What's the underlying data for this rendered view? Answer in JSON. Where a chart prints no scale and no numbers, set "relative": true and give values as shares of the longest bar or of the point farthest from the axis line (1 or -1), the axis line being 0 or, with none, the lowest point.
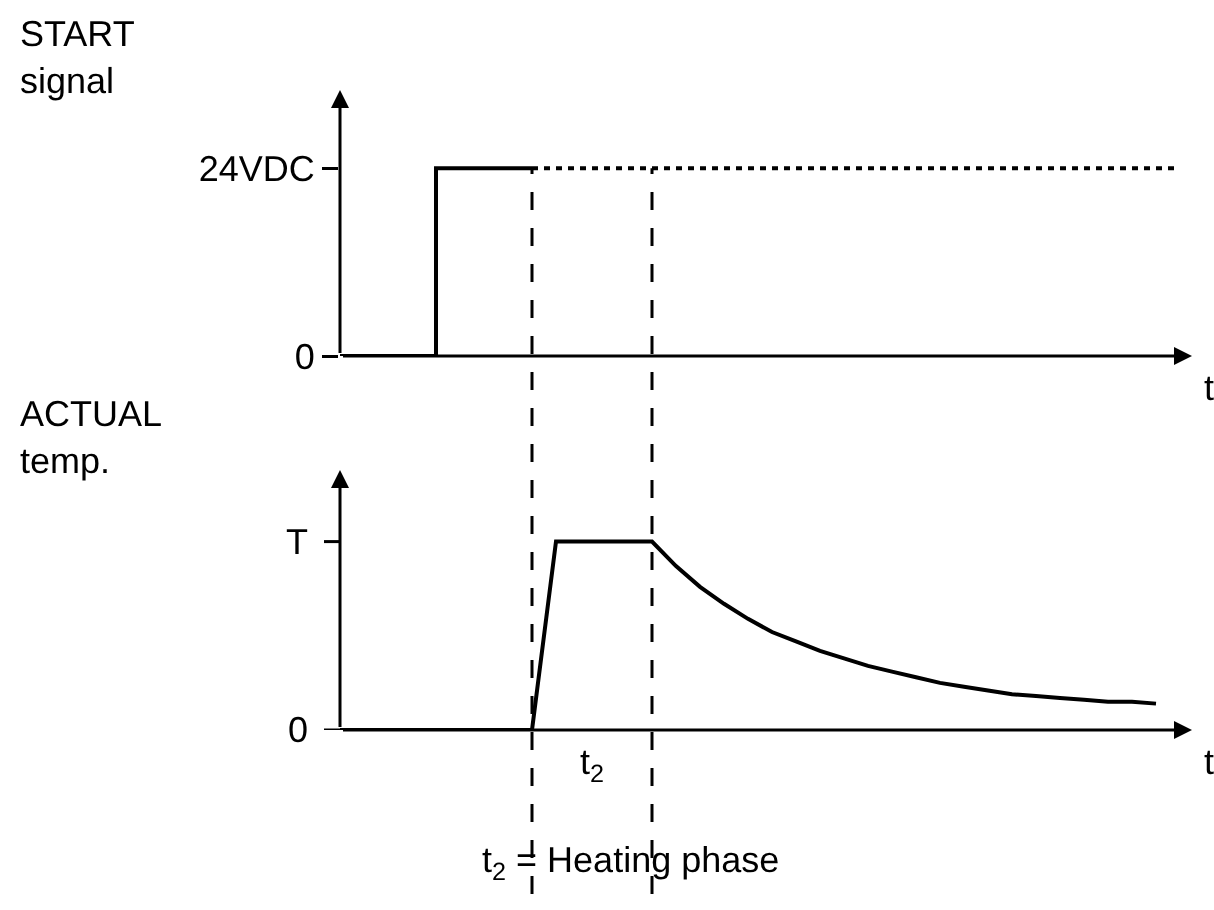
{
  "chart_data": [
    {
      "type": "line",
      "ylabel": "START signal",
      "xlabel": "t",
      "tick_labels": "y",
      "categories": [
        null,
        null,
        null,
        null,
        null,
        null,
        null,
        null,
        null,
        null,
        null,
        null,
        null,
        null,
        null,
        null,
        null,
        null,
        null,
        null,
        null,
        null,
        null,
        null,
        null,
        null,
        null,
        null,
        null,
        null,
        null,
        null,
        null,
        null,
        null,
        null
      ],
      "series": [
        {
          "type": "step",
          "color": "#000000",
          "line_style": "solid",
          "values": [
            0,
            0,
            0,
            0,
            24,
            24,
            24,
            24,
            24,
            null,
            null,
            null,
            null,
            null,
            null,
            null,
            null,
            null,
            null,
            null,
            null,
            null,
            null,
            null,
            null,
            null,
            null,
            null,
            null,
            null,
            null,
            null,
            null,
            null,
            null,
            null
          ]
        },
        {
          "type": "line",
          "color": "#000000",
          "line_style": "dotted",
          "values": [
            null,
            null,
            null,
            null,
            null,
            null,
            null,
            null,
            24,
            24,
            24,
            24,
            24,
            24,
            24,
            24,
            24,
            24,
            24,
            24,
            24,
            24,
            24,
            24,
            24,
            24,
            24,
            24,
            24,
            24,
            24,
            24,
            24,
            24,
            24,
            24
          ]
        }
      ],
      "ylim": [
        0,
        34
      ],
      "yticks": [
        0,
        {
          "value": 24,
          "label": "24VDC"
        }
      ]
    },
    {
      "type": "line",
      "ylabel": "ACTUAL temp.",
      "xlabel": "t",
      "relative": true,
      "categories": [
        null,
        null,
        null,
        null,
        null,
        null,
        null,
        null,
        null,
        null,
        null,
        null,
        null,
        null,
        null,
        null,
        null,
        null,
        null,
        null,
        null,
        null,
        null,
        null,
        null,
        null,
        null,
        null,
        null,
        null,
        null,
        null,
        null,
        null,
        null,
        null
      ],
      "series": [
        {
          "color": "#000000",
          "line_style": "solid",
          "values": [
            0,
            0,
            0,
            0,
            0,
            0,
            0,
            0,
            0,
            1,
            1,
            1,
            1,
            1,
            0.87,
            0.76,
            0.67,
            0.59,
            0.52,
            0.47,
            0.42,
            0.38,
            0.34,
            0.31,
            0.28,
            0.25,
            0.23,
            0.21,
            0.19,
            0.18,
            0.17,
            0.16,
            0.15,
            0.15,
            0.14,
            null
          ]
        }
      ],
      "annotations": [
        "t$_{2}$",
        "t$_{2}$ = Heating phase",
        "0",
        "T"
      ]
    }
  ]
}
